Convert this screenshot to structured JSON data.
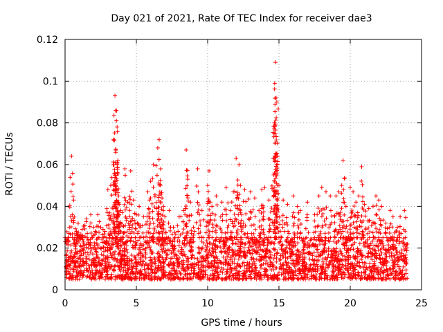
{
  "chart_data": {
    "type": "scatter",
    "title": "Day 021 of 2021, Rate Of TEC Index for receiver dae3",
    "xlabel": "GPS time / hours",
    "ylabel": "ROTI / TECUs",
    "xlim": [
      0,
      25
    ],
    "ylim": [
      0,
      0.12
    ],
    "x_ticks": [
      0,
      5,
      10,
      15,
      20,
      25
    ],
    "x_tick_labels": [
      "0",
      "5",
      "10",
      "15",
      "20",
      "25"
    ],
    "y_ticks": [
      0,
      0.02,
      0.04,
      0.06,
      0.08,
      0.1,
      0.12
    ],
    "y_tick_labels": [
      "0",
      "0.02",
      "0.04",
      "0.06",
      "0.08",
      "0.1",
      "0.12"
    ],
    "grid": true,
    "legend": "none",
    "marker": "+",
    "series": [
      {
        "color": "#ff0000",
        "baseline_band": [
          0.005,
          0.025
        ],
        "x": [
          0.1,
          0.3,
          0.45,
          0.6,
          0.8,
          1.0,
          1.2,
          1.5,
          1.8,
          2.0,
          2.3,
          2.5,
          2.8,
          3.0,
          3.2,
          3.4,
          3.5,
          3.55,
          3.6,
          3.65,
          3.7,
          3.75,
          3.8,
          3.9,
          4.0,
          4.2,
          4.4,
          4.6,
          4.8,
          5.0,
          5.2,
          5.5,
          5.8,
          6.0,
          6.2,
          6.5,
          6.6,
          6.7,
          6.8,
          6.9,
          7.0,
          7.3,
          7.6,
          8.0,
          8.3,
          8.5,
          8.6,
          8.8,
          9.0,
          9.3,
          9.6,
          10.0,
          10.1,
          10.3,
          10.6,
          11.0,
          11.3,
          11.6,
          11.8,
          12.0,
          12.2,
          12.3,
          12.6,
          13.0,
          13.3,
          13.6,
          13.8,
          14.0,
          14.3,
          14.6,
          14.7,
          14.75,
          14.8,
          14.85,
          15.0,
          15.3,
          15.6,
          16.0,
          16.3,
          16.5,
          17.0,
          17.5,
          17.8,
          18.0,
          18.3,
          18.6,
          19.0,
          19.2,
          19.4,
          19.5,
          19.7,
          20.0,
          20.2,
          20.4,
          20.6,
          20.8,
          21.0,
          21.3,
          21.6,
          21.8,
          22.0,
          22.2,
          22.5,
          22.8,
          23.0,
          23.3,
          23.5,
          23.8
        ],
        "y": [
          0.022,
          0.03,
          0.064,
          0.043,
          0.028,
          0.026,
          0.029,
          0.034,
          0.036,
          0.03,
          0.036,
          0.03,
          0.028,
          0.048,
          0.05,
          0.072,
          0.093,
          0.086,
          0.081,
          0.078,
          0.062,
          0.045,
          0.041,
          0.038,
          0.037,
          0.058,
          0.042,
          0.057,
          0.043,
          0.036,
          0.04,
          0.035,
          0.047,
          0.052,
          0.06,
          0.068,
          0.072,
          0.058,
          0.044,
          0.04,
          0.035,
          0.038,
          0.03,
          0.035,
          0.038,
          0.067,
          0.053,
          0.042,
          0.03,
          0.058,
          0.038,
          0.05,
          0.057,
          0.04,
          0.045,
          0.042,
          0.049,
          0.038,
          0.047,
          0.063,
          0.06,
          0.05,
          0.048,
          0.047,
          0.044,
          0.038,
          0.048,
          0.049,
          0.043,
          0.063,
          0.099,
          0.109,
          0.092,
          0.09,
          0.05,
          0.043,
          0.041,
          0.045,
          0.04,
          0.038,
          0.042,
          0.036,
          0.045,
          0.049,
          0.047,
          0.045,
          0.045,
          0.047,
          0.05,
          0.062,
          0.04,
          0.049,
          0.047,
          0.042,
          0.045,
          0.059,
          0.041,
          0.039,
          0.04,
          0.045,
          0.043,
          0.04,
          0.032,
          0.038,
          0.035,
          0.03,
          0.035,
          0.038
        ]
      }
    ]
  }
}
